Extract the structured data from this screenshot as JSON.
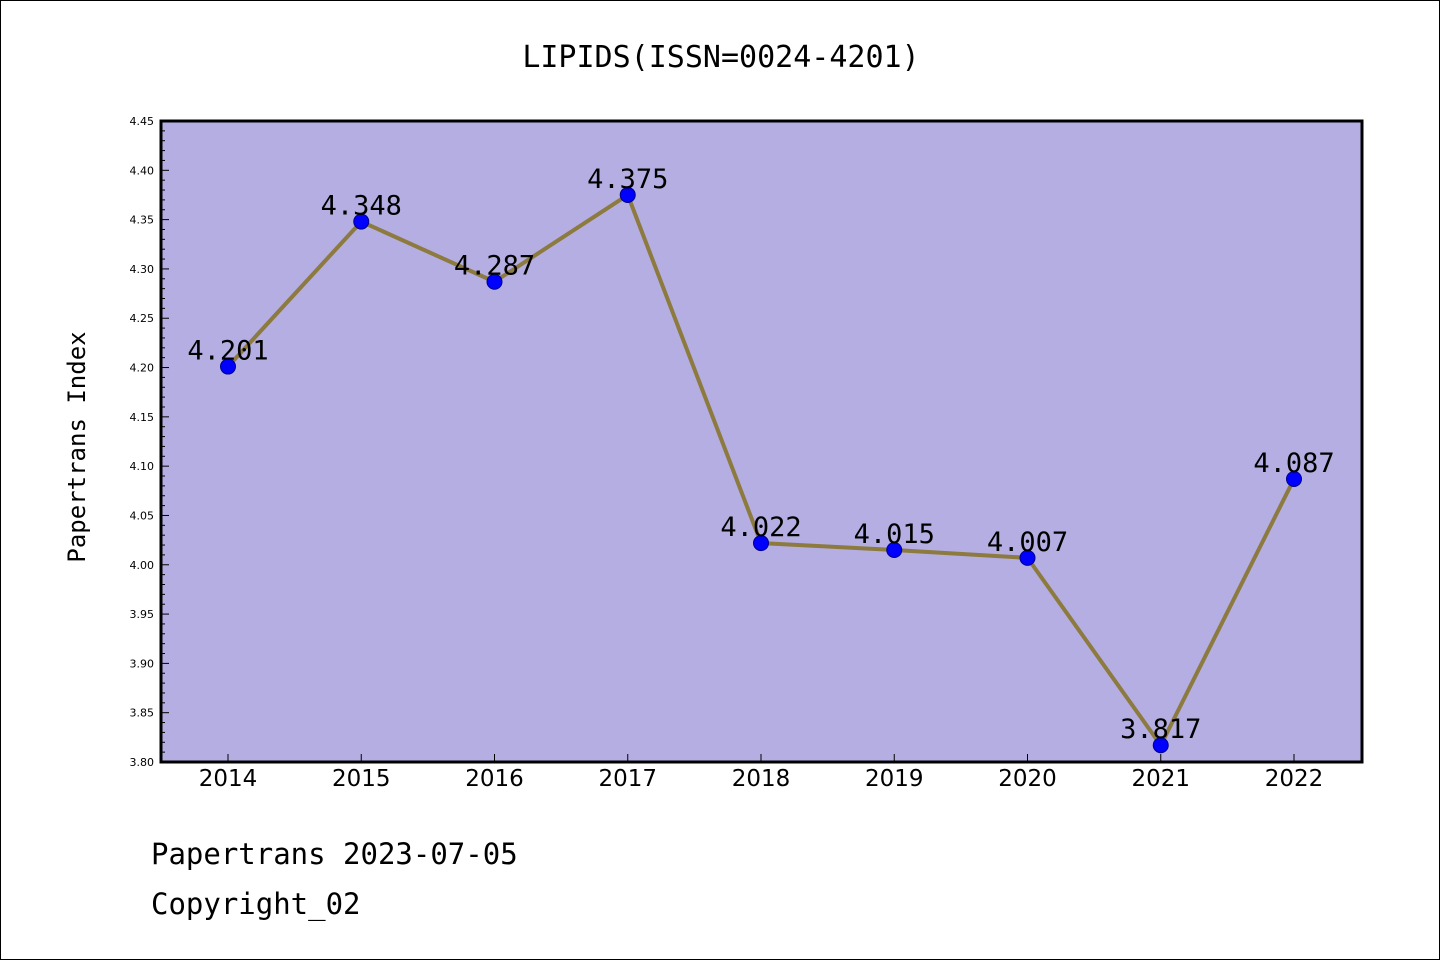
{
  "chart_data": {
    "type": "line",
    "title": "LIPIDS(ISSN=0024-4201)",
    "xlabel": "",
    "ylabel": "Papertrans Index",
    "categories": [
      "2014",
      "2015",
      "2016",
      "2017",
      "2018",
      "2019",
      "2020",
      "2021",
      "2022"
    ],
    "values": [
      4.201,
      4.348,
      4.287,
      4.375,
      4.022,
      4.015,
      4.007,
      3.817,
      4.087
    ],
    "data_labels": [
      "4.201",
      "4.348",
      "4.287",
      "4.375",
      "4.022",
      "4.015",
      "4.007",
      "3.817",
      "4.087"
    ],
    "ylim": [
      3.8,
      4.45
    ],
    "yticks": [
      "3.80",
      "3.85",
      "3.90",
      "3.95",
      "4.00",
      "4.05",
      "4.10",
      "4.15",
      "4.20",
      "4.25",
      "4.30",
      "4.35",
      "4.40",
      "4.45"
    ],
    "grid": false,
    "legend": "none",
    "colors": {
      "plot_background": "#b4aee2",
      "line": "#8c7a3e",
      "marker": "#0000ff",
      "marker_edge": "#00008b"
    }
  },
  "footer": {
    "date_line": "Papertrans 2023-07-05",
    "copyright_line": "Copyright_02"
  }
}
